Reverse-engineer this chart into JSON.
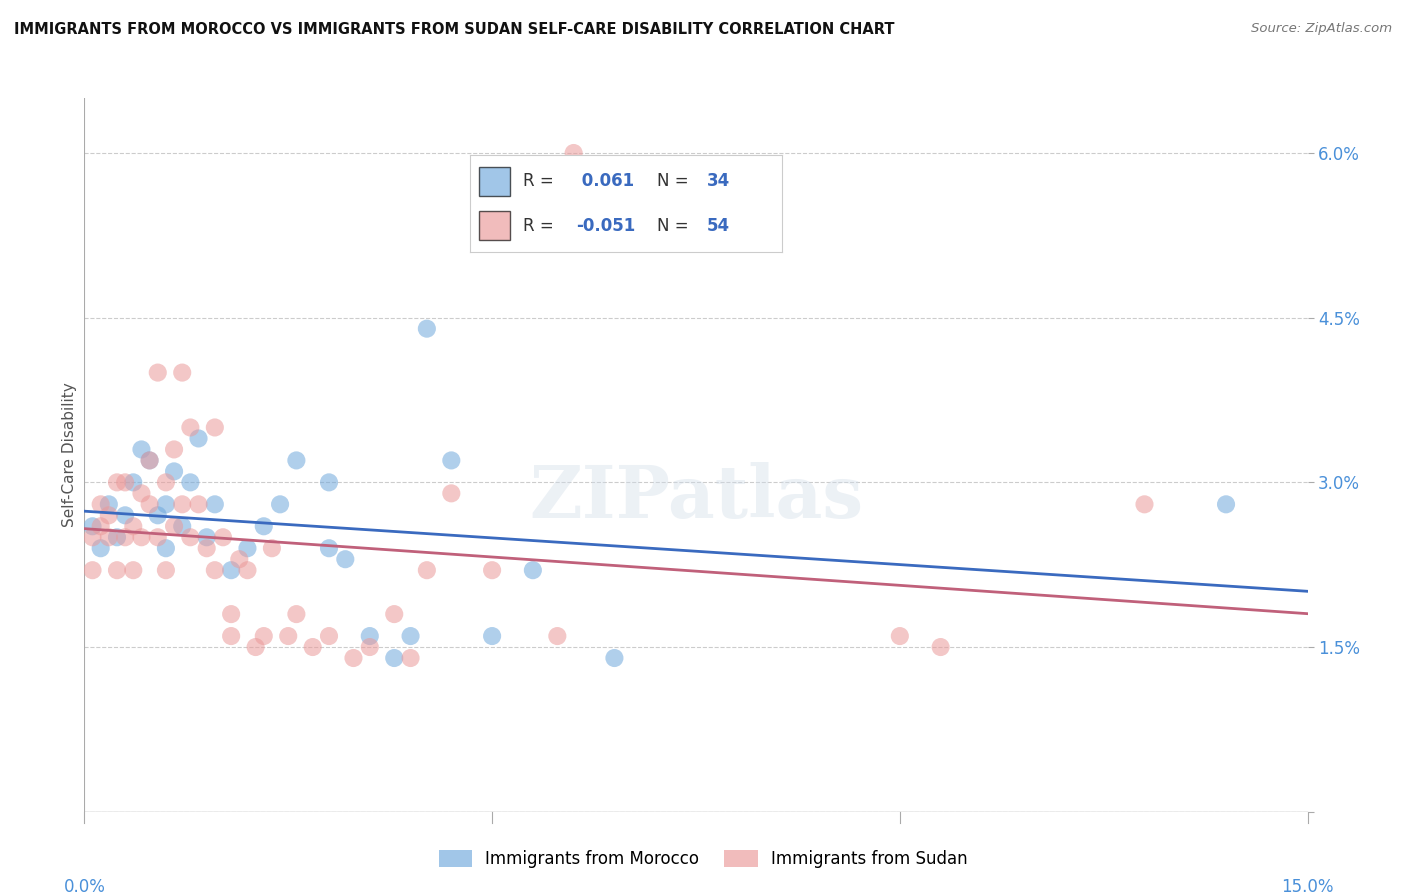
{
  "title": "IMMIGRANTS FROM MOROCCO VS IMMIGRANTS FROM SUDAN SELF-CARE DISABILITY CORRELATION CHART",
  "source": "Source: ZipAtlas.com",
  "ylabel": "Self-Care Disability",
  "xlim": [
    0.0,
    0.15
  ],
  "ylim": [
    0.0,
    0.065
  ],
  "yticks": [
    0.0,
    0.015,
    0.03,
    0.045,
    0.06
  ],
  "ytick_labels": [
    "",
    "1.5%",
    "3.0%",
    "4.5%",
    "6.0%"
  ],
  "xticks": [
    0.0,
    0.05,
    0.1,
    0.15
  ],
  "xtick_labels": [
    "0.0%",
    "",
    "",
    "15.0%"
  ],
  "r_morocco": 0.061,
  "n_morocco": 34,
  "r_sudan": -0.051,
  "n_sudan": 54,
  "color_morocco": "#6fa8dc",
  "color_sudan": "#ea9999",
  "line_color_morocco": "#3a6abf",
  "line_color_sudan": "#c0607a",
  "legend_label_morocco": "Immigrants from Morocco",
  "legend_label_sudan": "Immigrants from Sudan",
  "watermark": "ZIPatlas",
  "morocco_x": [
    0.001,
    0.002,
    0.003,
    0.004,
    0.005,
    0.006,
    0.007,
    0.008,
    0.009,
    0.01,
    0.01,
    0.011,
    0.012,
    0.013,
    0.014,
    0.015,
    0.016,
    0.018,
    0.02,
    0.022,
    0.024,
    0.026,
    0.03,
    0.03,
    0.032,
    0.035,
    0.038,
    0.04,
    0.042,
    0.045,
    0.05,
    0.055,
    0.065,
    0.14
  ],
  "morocco_y": [
    0.026,
    0.024,
    0.028,
    0.025,
    0.027,
    0.03,
    0.033,
    0.032,
    0.027,
    0.024,
    0.028,
    0.031,
    0.026,
    0.03,
    0.034,
    0.025,
    0.028,
    0.022,
    0.024,
    0.026,
    0.028,
    0.032,
    0.03,
    0.024,
    0.023,
    0.016,
    0.014,
    0.016,
    0.044,
    0.032,
    0.016,
    0.022,
    0.014,
    0.028
  ],
  "sudan_x": [
    0.001,
    0.001,
    0.002,
    0.002,
    0.003,
    0.003,
    0.004,
    0.004,
    0.005,
    0.005,
    0.006,
    0.006,
    0.007,
    0.007,
    0.008,
    0.008,
    0.009,
    0.009,
    0.01,
    0.01,
    0.011,
    0.011,
    0.012,
    0.012,
    0.013,
    0.013,
    0.014,
    0.015,
    0.016,
    0.016,
    0.017,
    0.018,
    0.018,
    0.019,
    0.02,
    0.021,
    0.022,
    0.023,
    0.025,
    0.026,
    0.028,
    0.03,
    0.033,
    0.035,
    0.038,
    0.04,
    0.042,
    0.045,
    0.05,
    0.058,
    0.06,
    0.1,
    0.105,
    0.13
  ],
  "sudan_y": [
    0.025,
    0.022,
    0.028,
    0.026,
    0.025,
    0.027,
    0.03,
    0.022,
    0.025,
    0.03,
    0.026,
    0.022,
    0.029,
    0.025,
    0.028,
    0.032,
    0.025,
    0.04,
    0.03,
    0.022,
    0.033,
    0.026,
    0.04,
    0.028,
    0.025,
    0.035,
    0.028,
    0.024,
    0.022,
    0.035,
    0.025,
    0.016,
    0.018,
    0.023,
    0.022,
    0.015,
    0.016,
    0.024,
    0.016,
    0.018,
    0.015,
    0.016,
    0.014,
    0.015,
    0.018,
    0.014,
    0.022,
    0.029,
    0.022,
    0.016,
    0.06,
    0.016,
    0.015,
    0.028
  ]
}
